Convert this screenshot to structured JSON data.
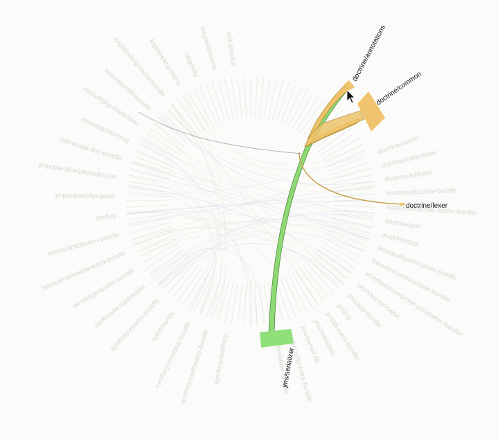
{
  "diagram": {
    "highlighted_nodes": [
      {
        "id": "annotations",
        "label": "doctrine/annotations",
        "color": "#f0c46e"
      },
      {
        "id": "common",
        "label": "doctrine/common",
        "color": "#f0c46e"
      },
      {
        "id": "lexer",
        "label": "doctrine/lexer",
        "color": "#e8c070"
      },
      {
        "id": "serializer",
        "label": "jms/serializer",
        "color": "#90e07a"
      }
    ],
    "faded_labels_right": [
      "doctrine/cache",
      "doctrine/collections",
      "doctrine/inflector",
      "doctrine/doctrine-bundle",
      "doctrine/doctrine-cache-bundle",
      "doctrine/orm",
      "doctrine/dbal",
      "friendsofsymfony/rest-bundle",
      "friendsofsymfony/user-bundle",
      "incenteev/composer-parameter-handler",
      "jdorn/sql-formatter",
      "jms/aop-bundle",
      "jms/cg",
      "jms/di-extra-bundle",
      "jms/metadata",
      "jms/parser-lib",
      "jms/security-extra-bundle",
      "jms/serializer-bundle"
    ],
    "faded_labels_left": [
      "symfony/symfony",
      "symfony/swiftmailer-bundle",
      "symfony/monolog-bundle",
      "symfony/icu",
      "symfony/assetic-bundle",
      "swiftmailer/swiftmailer",
      "sensio/generator-bundle",
      "sensio/framework-extra-bundle",
      "sensio/distribution-bundle",
      "psr/log",
      "phpoption/phpoption",
      "phpcollection/phpcollection",
      "nelmio/api-doc-bundle",
      "monolog/monolog",
      "michelf/php-markdown",
      "kriswallsmith/assetic",
      "knplabs/knp-menu-bundle",
      "knplabs/knp-menu",
      "twig/twig",
      "twig/extensions",
      "sylius/sylius"
    ]
  }
}
